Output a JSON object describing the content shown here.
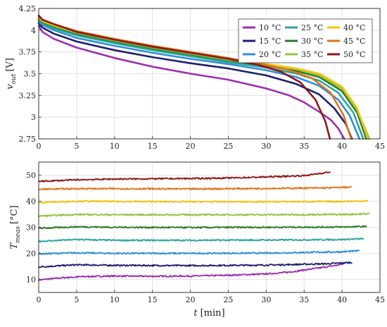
{
  "chart_data": [
    {
      "type": "line",
      "title": "",
      "xlabel": "",
      "ylabel": {
        "var": "v",
        "sub": "out",
        "unit": "[V]"
      },
      "xlim": [
        0,
        45
      ],
      "ylim": [
        2.75,
        4.25
      ],
      "xticks": [
        "0",
        "5",
        "10",
        "15",
        "20",
        "25",
        "30",
        "35",
        "40",
        "45"
      ],
      "yticks": [
        "2.75",
        "3",
        "3.25",
        "3.5",
        "3.75",
        "4",
        "4.25"
      ],
      "grid": true,
      "legend": {
        "placement": "top-right",
        "columns": 3
      },
      "series": [
        {
          "name": "10 °C",
          "color": "#9b2fb0",
          "end_time": 40.3,
          "x": [
            0,
            0.5,
            2,
            5,
            10,
            15,
            20,
            25,
            30,
            33,
            35,
            37,
            38.5,
            39.5,
            40.3
          ],
          "y": [
            4.05,
            3.98,
            3.9,
            3.8,
            3.68,
            3.58,
            3.5,
            3.43,
            3.33,
            3.25,
            3.17,
            3.06,
            2.97,
            2.87,
            2.75
          ]
        },
        {
          "name": "15 °C",
          "color": "#1e1f6e",
          "end_time": 41.3,
          "x": [
            0,
            0.5,
            2,
            5,
            10,
            15,
            20,
            25,
            30,
            34,
            37,
            39,
            40.5,
            41.3
          ],
          "y": [
            4.08,
            4.03,
            3.96,
            3.87,
            3.77,
            3.69,
            3.62,
            3.56,
            3.48,
            3.38,
            3.26,
            3.1,
            2.92,
            2.75
          ]
        },
        {
          "name": "20 °C",
          "color": "#2f8fd8",
          "end_time": 42.3,
          "x": [
            0,
            0.5,
            2,
            5,
            10,
            15,
            20,
            25,
            30,
            34,
            37,
            39.5,
            41,
            42.3
          ],
          "y": [
            4.1,
            4.06,
            4.0,
            3.91,
            3.82,
            3.74,
            3.67,
            3.61,
            3.54,
            3.46,
            3.36,
            3.2,
            3.02,
            2.75
          ]
        },
        {
          "name": "25 °C",
          "color": "#2aa79b",
          "end_time": 42.8,
          "x": [
            0,
            0.5,
            2,
            5,
            10,
            15,
            20,
            25,
            30,
            34,
            37,
            39.5,
            41.5,
            42.8
          ],
          "y": [
            4.12,
            4.08,
            4.02,
            3.94,
            3.85,
            3.77,
            3.7,
            3.63,
            3.57,
            3.5,
            3.42,
            3.28,
            3.05,
            2.75
          ]
        },
        {
          "name": "30 °C",
          "color": "#2a7a2a",
          "end_time": 43.2,
          "x": [
            0,
            0.5,
            2,
            5,
            10,
            15,
            20,
            25,
            30,
            34,
            37,
            40,
            42,
            43.2
          ],
          "y": [
            4.13,
            4.09,
            4.04,
            3.96,
            3.87,
            3.79,
            3.72,
            3.65,
            3.59,
            3.53,
            3.46,
            3.3,
            3.05,
            2.75
          ]
        },
        {
          "name": "35 °C",
          "color": "#8fc63c",
          "end_time": 43.6,
          "x": [
            0,
            0.5,
            2,
            5,
            10,
            15,
            20,
            25,
            30,
            34,
            37,
            40,
            42,
            43.6
          ],
          "y": [
            4.14,
            4.1,
            4.05,
            3.97,
            3.88,
            3.8,
            3.73,
            3.66,
            3.6,
            3.55,
            3.48,
            3.33,
            3.08,
            2.75
          ]
        },
        {
          "name": "40 °C",
          "color": "#f2c40f",
          "end_time": 43.4,
          "x": [
            0,
            0.5,
            2,
            5,
            10,
            15,
            20,
            25,
            30,
            34,
            37,
            40,
            42,
            43.4
          ],
          "y": [
            4.15,
            4.11,
            4.06,
            3.98,
            3.89,
            3.81,
            3.74,
            3.67,
            3.61,
            3.56,
            3.5,
            3.35,
            3.1,
            2.75
          ]
        },
        {
          "name": "45 °C",
          "color": "#e2721a",
          "end_time": 41.2,
          "x": [
            0,
            0.5,
            2,
            5,
            10,
            15,
            20,
            25,
            30,
            33,
            36,
            38.5,
            40.2,
            41.2
          ],
          "y": [
            4.16,
            4.12,
            4.07,
            3.99,
            3.9,
            3.82,
            3.75,
            3.68,
            3.6,
            3.54,
            3.45,
            3.28,
            3.02,
            2.75
          ]
        },
        {
          "name": "50 °C",
          "color": "#8a1a1a",
          "end_time": 38.4,
          "x": [
            0,
            0.5,
            2,
            5,
            10,
            15,
            20,
            25,
            29,
            32,
            34.5,
            36.5,
            37.8,
            38.4
          ],
          "y": [
            4.17,
            4.12,
            4.07,
            3.98,
            3.89,
            3.81,
            3.74,
            3.67,
            3.6,
            3.52,
            3.4,
            3.2,
            2.95,
            2.75
          ]
        }
      ]
    },
    {
      "type": "line",
      "title": "",
      "xlabel": {
        "var": "t",
        "unit": "[min]"
      },
      "ylabel": {
        "var": "T",
        "sub": "meas",
        "unit": "[°C]"
      },
      "xlim": [
        0,
        45
      ],
      "ylim": [
        5,
        55
      ],
      "xticks": [
        "0",
        "5",
        "10",
        "15",
        "20",
        "25",
        "30",
        "35",
        "40",
        "45"
      ],
      "yticks": [
        "10",
        "20",
        "30",
        "40",
        "50"
      ],
      "grid": true,
      "series": [
        {
          "name": "10 °C",
          "color": "#9b2fb0",
          "x": [
            0,
            3,
            6,
            10,
            15,
            20,
            25,
            30,
            33,
            35,
            37,
            39,
            40.3
          ],
          "y": [
            9.8,
            10.6,
            11.1,
            11.3,
            11.2,
            11.3,
            11.6,
            12.1,
            12.8,
            13.6,
            14.4,
            15.3,
            16.0
          ]
        },
        {
          "name": "15 °C",
          "color": "#1e1f6e",
          "x": [
            0,
            5,
            10,
            20,
            30,
            38,
            41.3
          ],
          "y": [
            14.8,
            15.6,
            15.4,
            15.3,
            15.5,
            16.0,
            16.5
          ]
        },
        {
          "name": "20 °C",
          "color": "#2f8fd8",
          "x": [
            0,
            5,
            10,
            20,
            30,
            40,
            42.3
          ],
          "y": [
            19.8,
            20.2,
            20.0,
            20.0,
            20.1,
            20.6,
            21.0
          ]
        },
        {
          "name": "25 °C",
          "color": "#2aa79b",
          "x": [
            0,
            5,
            10,
            20,
            30,
            40,
            42.8
          ],
          "y": [
            24.6,
            25.3,
            25.0,
            25.0,
            25.1,
            25.3,
            25.6
          ]
        },
        {
          "name": "30 °C",
          "color": "#2a7a2a",
          "x": [
            0,
            5,
            10,
            20,
            30,
            40,
            43.2
          ],
          "y": [
            29.6,
            30.2,
            30.0,
            29.9,
            30.0,
            30.1,
            30.3
          ]
        },
        {
          "name": "35 °C",
          "color": "#8fc63c",
          "x": [
            0,
            5,
            10,
            20,
            30,
            40,
            43.6
          ],
          "y": [
            34.3,
            34.9,
            34.8,
            34.8,
            34.8,
            34.9,
            35.2
          ]
        },
        {
          "name": "40 °C",
          "color": "#f2c40f",
          "x": [
            0,
            5,
            10,
            20,
            30,
            40,
            43.4
          ],
          "y": [
            39.5,
            40.0,
            39.9,
            39.8,
            39.8,
            39.9,
            40.1
          ]
        },
        {
          "name": "45 °C",
          "color": "#e2721a",
          "x": [
            0,
            5,
            10,
            20,
            30,
            38,
            41.2
          ],
          "y": [
            44.6,
            44.8,
            44.8,
            44.7,
            44.9,
            45.1,
            45.4
          ]
        },
        {
          "name": "50 °C",
          "color": "#8a1a1a",
          "x": [
            0,
            5,
            10,
            20,
            25,
            30,
            35,
            38.4
          ],
          "y": [
            47.6,
            48.2,
            48.5,
            48.7,
            48.9,
            49.3,
            49.8,
            51.2
          ]
        }
      ]
    }
  ]
}
